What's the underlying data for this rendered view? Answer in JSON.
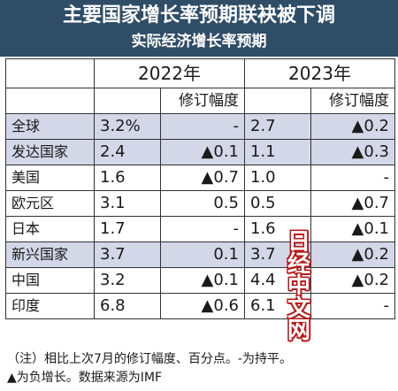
{
  "header": {
    "title": "主要国家增长率预期联袂被下调",
    "subtitle": "实际经济增长率预期"
  },
  "table": {
    "years": [
      "2022年",
      "2023年"
    ],
    "revision_label": "修订幅度",
    "rows": [
      {
        "name": "全球",
        "v2022": "3.2%",
        "r2022": "-",
        "v2023": "2.7",
        "r2023": "▲0.2",
        "shaded": true
      },
      {
        "name": "发达国家",
        "v2022": "2.4",
        "r2022": "▲0.1",
        "v2023": "1.1",
        "r2023": "▲0.3",
        "shaded": true
      },
      {
        "name": "美国",
        "v2022": "1.6",
        "r2022": "▲0.7",
        "v2023": "1.0",
        "r2023": "-",
        "shaded": false
      },
      {
        "name": "欧元区",
        "v2022": "3.1",
        "r2022": "0.5",
        "v2023": "0.5",
        "r2023": "▲0.7",
        "shaded": false
      },
      {
        "name": "日本",
        "v2022": "1.7",
        "r2022": "-",
        "v2023": "1.6",
        "r2023": "▲0.1",
        "shaded": false
      },
      {
        "name": "新兴国家",
        "v2022": "3.7",
        "r2022": "0.1",
        "v2023": "3.7",
        "r2023": "▲0.2",
        "shaded": true
      },
      {
        "name": "中国",
        "v2022": "3.2",
        "r2022": "▲0.1",
        "v2023": "4.4",
        "r2023": "▲0.2",
        "shaded": false
      },
      {
        "name": "印度",
        "v2022": "6.8",
        "r2022": "▲0.6",
        "v2023": "6.1",
        "r2023": "-",
        "shaded": false
      }
    ]
  },
  "notes": {
    "line1": "（注）相比上次7月的修订幅度、百分点。-为持平。",
    "line2": "▲为负增长。数据来源为IMF"
  },
  "watermark": {
    "chars": [
      "日",
      "经",
      "中",
      "文",
      "网"
    ],
    "color": "#b31919"
  },
  "colors": {
    "header_bg": "#2f4d66",
    "shade_bg": "#d3d7e8"
  }
}
